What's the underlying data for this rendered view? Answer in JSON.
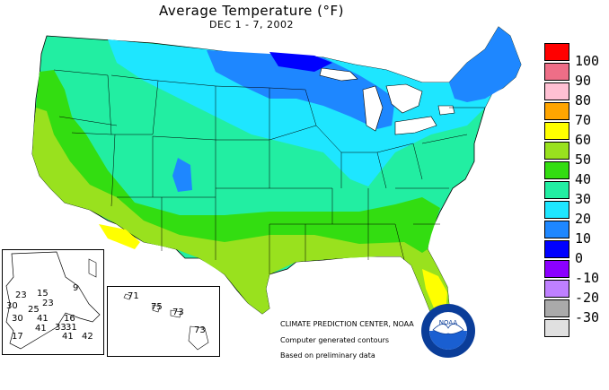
{
  "title": "Average Temperature (°F)",
  "subtitle": "DEC 1 - 7, 2002",
  "legend": [
    {
      "label": "100",
      "color": "#ff0000"
    },
    {
      "label": "90",
      "color": "#ee6e87"
    },
    {
      "label": "80",
      "color": "#ffc0d3"
    },
    {
      "label": "70",
      "color": "#ffa500"
    },
    {
      "label": "60",
      "color": "#ffff00"
    },
    {
      "label": "50",
      "color": "#99e11e"
    },
    {
      "label": "40",
      "color": "#33dd11"
    },
    {
      "label": "30",
      "color": "#22eea2"
    },
    {
      "label": "20",
      "color": "#1ee6ff"
    },
    {
      "label": "10",
      "color": "#1e87ff"
    },
    {
      "label": "0",
      "color": "#0000ff"
    },
    {
      "label": "-10",
      "color": "#8b00ff"
    },
    {
      "label": "-20",
      "color": "#bf80ff"
    },
    {
      "label": "-30",
      "color": "#aaaaaa"
    },
    {
      "label": "",
      "color": "#e0e0e0"
    }
  ],
  "alaska_labels": [
    "9",
    "23",
    "15",
    "23",
    "30",
    "25",
    "30",
    "41",
    "16",
    "41",
    "33",
    "31",
    "17",
    "41",
    "42"
  ],
  "hawaii_labels": [
    "71",
    "75",
    "73",
    "73"
  ],
  "credits": {
    "line1": "CLIMATE PREDICTION CENTER, NOAA",
    "line2": "Computer generated contours",
    "line3": "Based on preliminary data"
  },
  "logo_text": "NOAA"
}
